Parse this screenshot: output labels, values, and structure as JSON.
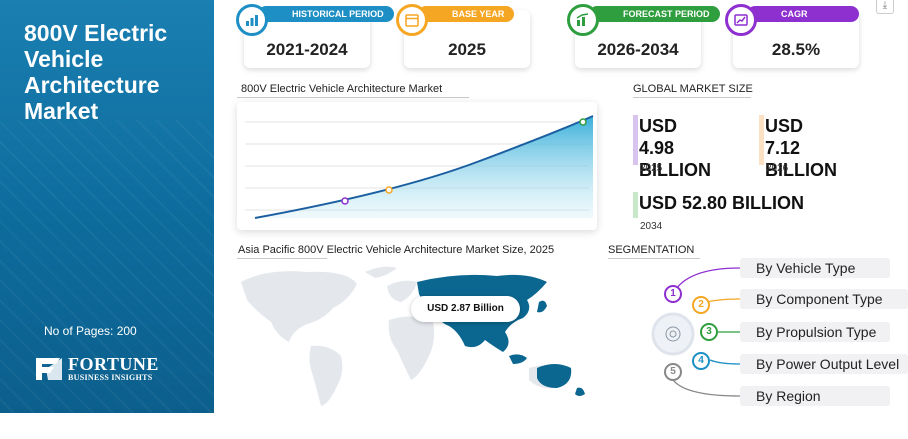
{
  "report": {
    "title": "800V Electric Vehicle Architecture Market",
    "pages_label": "No of Pages: 200",
    "brand_main": "FORTUNE",
    "brand_sub": "BUSINESS INSIGHTS"
  },
  "stats": [
    {
      "tag": "HISTORICAL PERIOD",
      "value": "2021-2024",
      "color": "#1d8fc4",
      "icon": "bar-chart-icon"
    },
    {
      "tag": "BASE YEAR",
      "value": "2025",
      "color": "#f5a623",
      "icon": "calendar-icon"
    },
    {
      "tag": "FORECAST PERIOD",
      "value": "2026-2034",
      "color": "#2e9e3e",
      "icon": "forecast-chart-icon"
    },
    {
      "tag": "CAGR",
      "value": "28.5%",
      "color": "#8e2fd0",
      "icon": "growth-chart-icon"
    }
  ],
  "chart": {
    "title": "800V Electric Vehicle Architecture Market",
    "marker_colors": [
      "#8e2fd0",
      "#f5a623",
      "#2e9e3e"
    ]
  },
  "market_size": {
    "heading": "GLOBAL MARKET SIZE",
    "items": [
      {
        "value_line1": "USD 4.98",
        "value_line2": "BILLION",
        "year": "2025",
        "color": "#d9c4f0"
      },
      {
        "value_line1": "USD 7.12",
        "value_line2": "BILLION",
        "year": "2026",
        "color": "#fbe0c4"
      },
      {
        "value": "USD 52.80 BILLION",
        "year": "2034",
        "color": "#c6e8c9"
      }
    ]
  },
  "map": {
    "title": "Asia Pacific 800V Electric Vehicle Architecture Market Size, 2025",
    "callout": "USD 2.87 Billion"
  },
  "segmentation": {
    "heading": "SEGMENTATION",
    "items": [
      {
        "num": "1",
        "label": "By Vehicle Type",
        "color": "#8e2fd0"
      },
      {
        "num": "2",
        "label": "By Component Type",
        "color": "#f5a623"
      },
      {
        "num": "3",
        "label": "By Propulsion Type",
        "color": "#2e9e3e"
      },
      {
        "num": "4",
        "label": "By Power Output Level",
        "color": "#1d8fc4"
      },
      {
        "num": "5",
        "label": "By Region",
        "color": "#888888"
      }
    ]
  }
}
